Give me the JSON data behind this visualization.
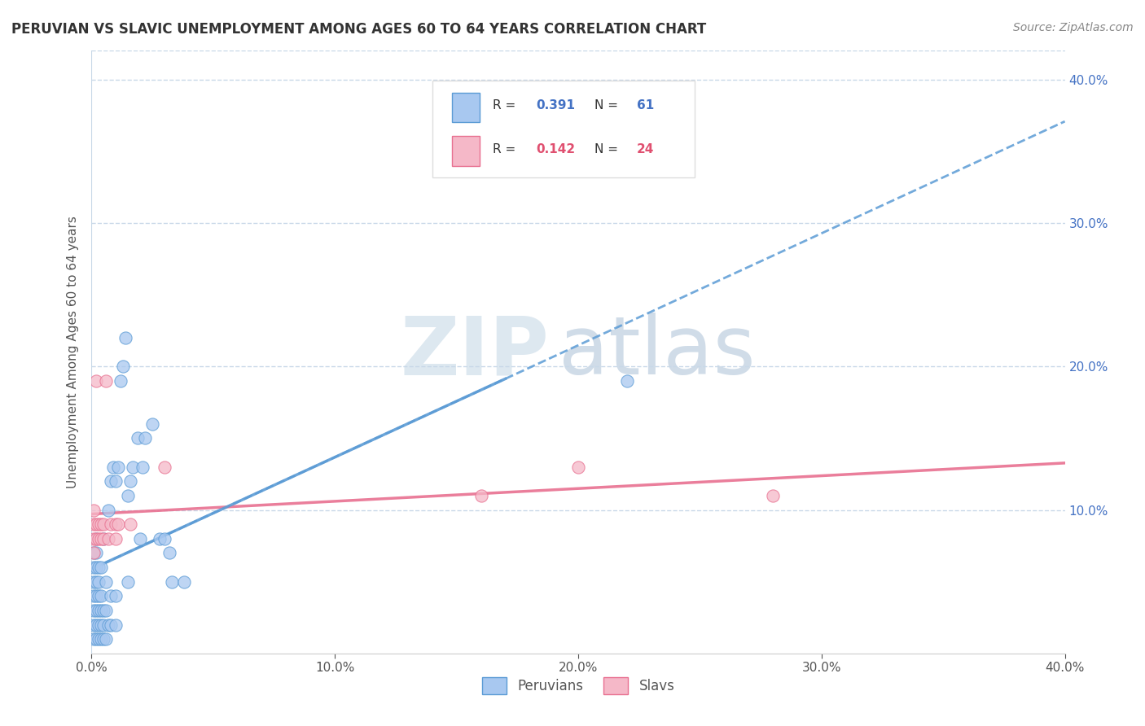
{
  "title": "PERUVIAN VS SLAVIC UNEMPLOYMENT AMONG AGES 60 TO 64 YEARS CORRELATION CHART",
  "source_text": "Source: ZipAtlas.com",
  "ylabel": "Unemployment Among Ages 60 to 64 years",
  "xlim": [
    0.0,
    0.4
  ],
  "ylim": [
    0.0,
    0.42
  ],
  "xtick_labels": [
    "0.0%",
    "10.0%",
    "20.0%",
    "30.0%",
    "40.0%"
  ],
  "xtick_vals": [
    0.0,
    0.1,
    0.2,
    0.3,
    0.4
  ],
  "ytick_labels": [
    "10.0%",
    "20.0%",
    "30.0%",
    "40.0%"
  ],
  "ytick_vals": [
    0.1,
    0.2,
    0.3,
    0.4
  ],
  "peruvian_color": "#a8c8f0",
  "slavic_color": "#f5b8c8",
  "peruvian_edge_color": "#5b9bd5",
  "slavic_edge_color": "#e87090",
  "peruvian_trend_color": "#5b9bd5",
  "slavic_trend_color": "#e87090",
  "grid_color": "#c8d8e8",
  "background_color": "#ffffff",
  "watermark_zip_color": "#dde8f0",
  "watermark_atlas_color": "#d0dce8",
  "peruvian_x": [
    0.001,
    0.001,
    0.001,
    0.001,
    0.001,
    0.001,
    0.001,
    0.002,
    0.002,
    0.002,
    0.002,
    0.002,
    0.002,
    0.002,
    0.002,
    0.003,
    0.003,
    0.003,
    0.003,
    0.003,
    0.003,
    0.004,
    0.004,
    0.004,
    0.004,
    0.004,
    0.005,
    0.005,
    0.005,
    0.005,
    0.006,
    0.006,
    0.006,
    0.007,
    0.007,
    0.008,
    0.008,
    0.008,
    0.009,
    0.01,
    0.01,
    0.01,
    0.011,
    0.012,
    0.013,
    0.014,
    0.015,
    0.015,
    0.016,
    0.017,
    0.019,
    0.02,
    0.021,
    0.022,
    0.025,
    0.028,
    0.03,
    0.032,
    0.033,
    0.038,
    0.22
  ],
  "peruvian_y": [
    0.01,
    0.02,
    0.03,
    0.04,
    0.05,
    0.06,
    0.07,
    0.01,
    0.02,
    0.03,
    0.04,
    0.05,
    0.06,
    0.07,
    0.08,
    0.01,
    0.02,
    0.03,
    0.04,
    0.05,
    0.06,
    0.01,
    0.02,
    0.03,
    0.04,
    0.06,
    0.01,
    0.02,
    0.03,
    0.08,
    0.01,
    0.03,
    0.05,
    0.02,
    0.1,
    0.02,
    0.04,
    0.12,
    0.13,
    0.02,
    0.04,
    0.12,
    0.13,
    0.19,
    0.2,
    0.22,
    0.05,
    0.11,
    0.12,
    0.13,
    0.15,
    0.08,
    0.13,
    0.15,
    0.16,
    0.08,
    0.08,
    0.07,
    0.05,
    0.05,
    0.19
  ],
  "slavic_x": [
    0.001,
    0.001,
    0.001,
    0.001,
    0.002,
    0.002,
    0.002,
    0.003,
    0.003,
    0.004,
    0.004,
    0.005,
    0.005,
    0.006,
    0.007,
    0.008,
    0.01,
    0.01,
    0.011,
    0.016,
    0.03,
    0.16,
    0.2,
    0.28
  ],
  "slavic_y": [
    0.07,
    0.08,
    0.09,
    0.1,
    0.08,
    0.09,
    0.19,
    0.08,
    0.09,
    0.08,
    0.09,
    0.08,
    0.09,
    0.19,
    0.08,
    0.09,
    0.08,
    0.09,
    0.09,
    0.09,
    0.13,
    0.11,
    0.13,
    0.11
  ]
}
